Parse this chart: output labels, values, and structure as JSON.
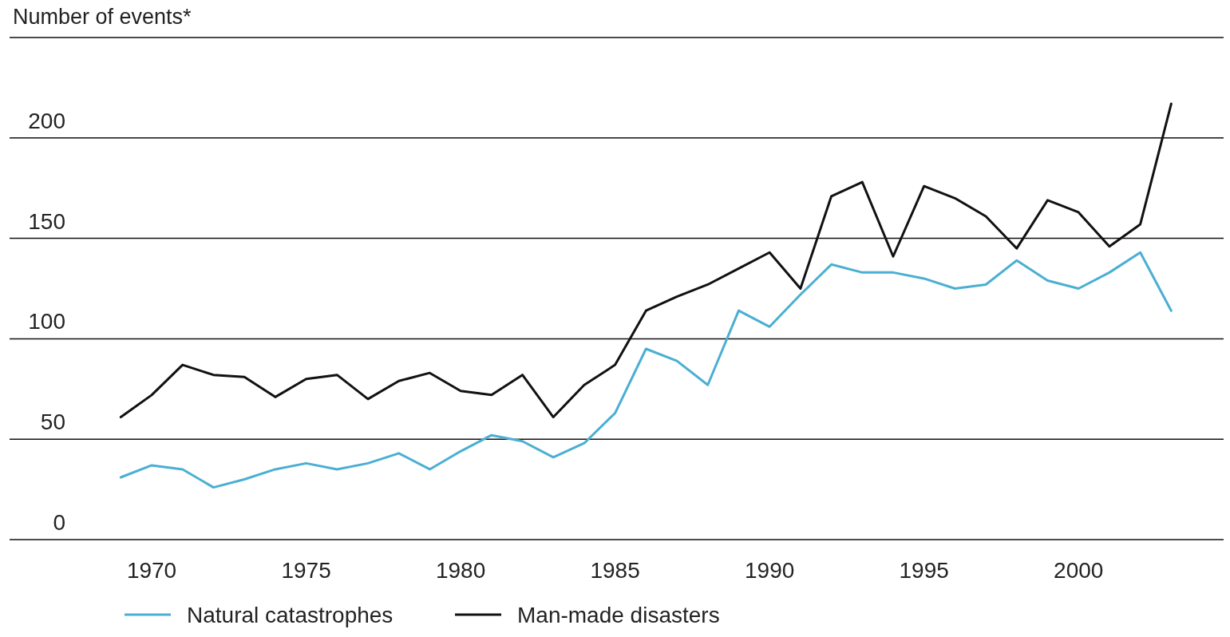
{
  "chart_data": {
    "type": "line",
    "ylabel": "Number of events*",
    "x": [
      1969,
      1970,
      1971,
      1972,
      1973,
      1974,
      1975,
      1976,
      1977,
      1978,
      1979,
      1980,
      1981,
      1982,
      1983,
      1984,
      1985,
      1986,
      1987,
      1988,
      1989,
      1990,
      1991,
      1992,
      1993,
      1994,
      1995,
      1996,
      1997,
      1998,
      1999,
      2000,
      2001,
      2002,
      2003
    ],
    "series": [
      {
        "name": "Natural catastrophes",
        "color": "#4aafd2",
        "values": [
          31,
          37,
          35,
          26,
          30,
          35,
          38,
          35,
          38,
          43,
          35,
          44,
          52,
          49,
          41,
          48,
          63,
          95,
          89,
          77,
          114,
          106,
          122,
          137,
          133,
          133,
          130,
          125,
          127,
          139,
          129,
          125,
          133,
          143,
          114
        ]
      },
      {
        "name": "Man-made disasters",
        "color": "#111111",
        "values": [
          61,
          72,
          87,
          82,
          81,
          71,
          80,
          82,
          70,
          79,
          83,
          74,
          72,
          82,
          61,
          77,
          87,
          114,
          121,
          127,
          135,
          143,
          125,
          171,
          178,
          141,
          176,
          170,
          161,
          145,
          169,
          163,
          146,
          157,
          217
        ]
      }
    ],
    "xlim": [
      1965.4,
      2004.8
    ],
    "xticks": [
      1970,
      1975,
      1980,
      1985,
      1990,
      1995,
      2000
    ],
    "ylim": [
      0,
      250
    ],
    "yticks": [
      0,
      50,
      100,
      150,
      200,
      {
        "value": 250,
        "label": null
      }
    ],
    "grid": "y",
    "legend": "bottom left",
    "line_style": "solid",
    "marker": "none"
  }
}
